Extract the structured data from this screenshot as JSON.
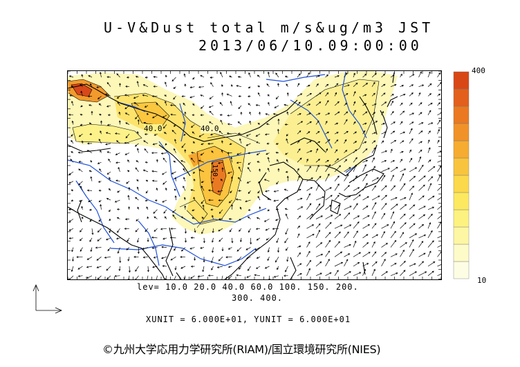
{
  "title": {
    "line1": "U-V&Dust total m/s&ug/m3 JST",
    "line2": "2013/06/10.09:00:00"
  },
  "colorbar": {
    "max_label": "400",
    "min_label": "10",
    "colors": [
      "#fdfde4",
      "#fdfbc8",
      "#fdf7a4",
      "#fdf27f",
      "#fde95f",
      "#fbd94b",
      "#f9c43d",
      "#f6ac30",
      "#f19228",
      "#ea7921",
      "#e2601b",
      "#d84816"
    ]
  },
  "contour_labels": [
    "40.0",
    "40.0",
    "150."
  ],
  "legend": {
    "lev_line1": "lev= 10.0 20.0 40.0 60.0 100. 150. 200.",
    "lev_line2": "300. 400.",
    "unit_line": "XUNIT = 6.000E+01, YUNIT = 6.000E+01"
  },
  "copyright": "©九州大学応用力学研究所(RIAM)/国立環境研究所(NIES)",
  "colors": {
    "river": "#1e50d8",
    "coast": "#000000",
    "dust_low": "#fdf7b8",
    "dust_mid": "#fcd24e",
    "dust_high": "#e8631c"
  }
}
